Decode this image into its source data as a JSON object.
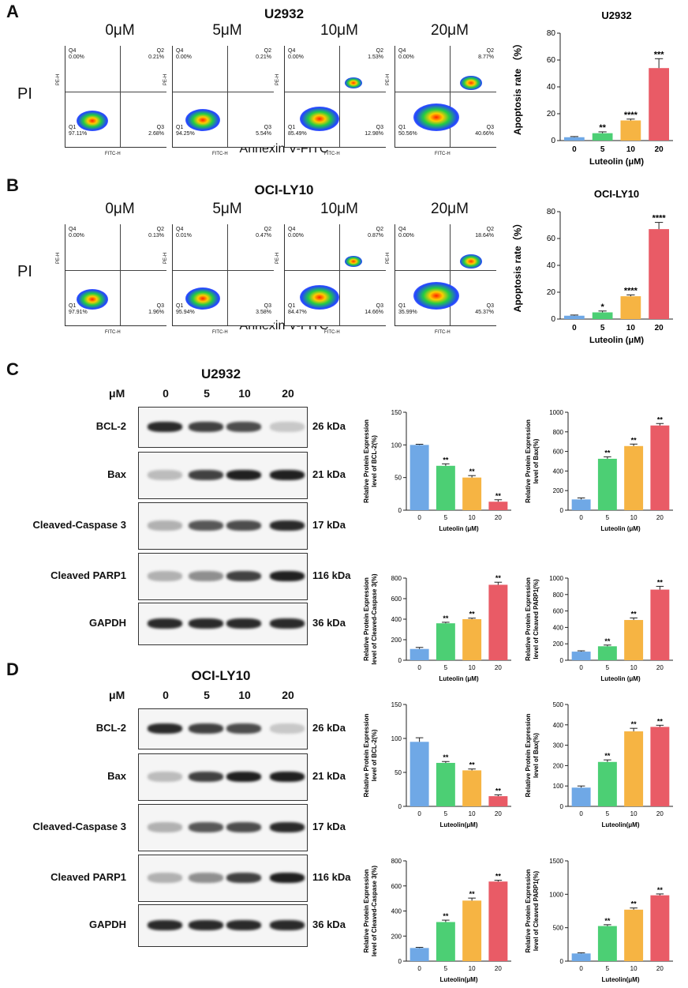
{
  "colors": {
    "c0": "#6fa8e6",
    "c1": "#4ccf74",
    "c2": "#f6b443",
    "c3": "#e95b66"
  },
  "panels": {
    "A": "A",
    "B": "B",
    "C": "C",
    "D": "D"
  },
  "flowA": {
    "title": "U2932",
    "concs": [
      "0μM",
      "5μM",
      "10μM",
      "20μM"
    ],
    "ylabel": "PI",
    "xlabel": "Annexin V-FITC",
    "plots": [
      {
        "q4": "0.00%",
        "q2": "0.21%",
        "q1": "97.11%",
        "q3": "2.68%"
      },
      {
        "q4": "0.00%",
        "q2": "0.21%",
        "q1": "94.25%",
        "q3": "5.54%"
      },
      {
        "q4": "0.00%",
        "q2": "1.53%",
        "q1": "85.49%",
        "q3": "12.98%"
      },
      {
        "q4": "0.00%",
        "q2": "8.77%",
        "q1": "50.56%",
        "q3": "40.66%"
      }
    ]
  },
  "flowB": {
    "title": "OCI-LY10",
    "concs": [
      "0μM",
      "5μM",
      "10μM",
      "20μM"
    ],
    "ylabel": "PI",
    "xlabel": "Annexin V-FITC",
    "plots": [
      {
        "q4": "0.00%",
        "q2": "0.13%",
        "q1": "97.91%",
        "q3": "1.96%"
      },
      {
        "q4": "0.01%",
        "q2": "0.47%",
        "q1": "95.94%",
        "q3": "3.58%"
      },
      {
        "q4": "0.00%",
        "q2": "0.87%",
        "q1": "84.47%",
        "q3": "14.66%"
      },
      {
        "q4": "0.00%",
        "q2": "18.64%",
        "q1": "35.99%",
        "q3": "45.37%"
      }
    ]
  },
  "flowAxis": {
    "q1": "Q1",
    "q2": "Q2",
    "q3": "Q3",
    "q4": "Q4",
    "xaxis": "FITC-H",
    "yaxis": "PE-H"
  },
  "westernC": {
    "title": "U2932",
    "unit": "μM",
    "lanes": [
      "0",
      "5",
      "10",
      "20"
    ],
    "rows": [
      {
        "name": "BCL-2",
        "kda": "26 kDa"
      },
      {
        "name": "Bax",
        "kda": "21 kDa"
      },
      {
        "name": "Cleaved-Caspase 3",
        "kda": "17 kDa"
      },
      {
        "name": "Cleaved PARP1",
        "kda": "116 kDa"
      },
      {
        "name": "GAPDH",
        "kda": "36 kDa"
      }
    ]
  },
  "westernD": {
    "title": "OCI-LY10",
    "unit": "μM",
    "lanes": [
      "0",
      "5",
      "10",
      "20"
    ],
    "rows": [
      {
        "name": "BCL-2",
        "kda": "26 kDa"
      },
      {
        "name": "Bax",
        "kda": "21 kDa"
      },
      {
        "name": "Cleaved-Caspase 3",
        "kda": "17 kDa"
      },
      {
        "name": "Cleaved PARP1",
        "kda": "116 kDa"
      },
      {
        "name": "GAPDH",
        "kda": "36 kDa"
      }
    ]
  },
  "chart_data": [
    {
      "id": "apoA",
      "type": "bar",
      "title": "U2932",
      "categories": [
        "0",
        "5",
        "10",
        "20"
      ],
      "values": [
        2.5,
        5.5,
        15,
        54
      ],
      "errors": [
        0.5,
        1,
        1,
        7
      ],
      "sig": [
        "",
        "**",
        "****",
        "***"
      ],
      "ylabel": "Apoptosis rate （%）",
      "xlabel": "Luteolin (μM)",
      "ylim": [
        0,
        80
      ],
      "ticks": [
        0,
        20,
        40,
        60,
        80
      ]
    },
    {
      "id": "apoB",
      "type": "bar",
      "title": "OCI-LY10",
      "categories": [
        "0",
        "5",
        "10",
        "20"
      ],
      "values": [
        2.5,
        5,
        17,
        67
      ],
      "errors": [
        0.5,
        1,
        1,
        5
      ],
      "sig": [
        "",
        "*",
        "****",
        "****"
      ],
      "ylabel": "Apoptosis rate（%）",
      "xlabel": "Luteolin (μM)",
      "ylim": [
        0,
        80
      ],
      "ticks": [
        0,
        20,
        40,
        60,
        80
      ]
    },
    {
      "id": "c1",
      "type": "bar",
      "title": "",
      "categories": [
        "0",
        "5",
        "10",
        "20"
      ],
      "values": [
        100,
        68,
        50,
        13
      ],
      "errors": [
        1,
        3,
        3,
        3
      ],
      "sig": [
        "",
        "**",
        "**",
        "**"
      ],
      "ylabel": "Relative Protein Expression level of BCL-2(%)",
      "xlabel": "Luteolin (μM)",
      "ylim": [
        0,
        150
      ],
      "ticks": [
        0,
        50,
        100,
        150
      ]
    },
    {
      "id": "c2",
      "type": "bar",
      "title": "",
      "categories": [
        "0",
        "5",
        "10",
        "20"
      ],
      "values": [
        110,
        525,
        655,
        865
      ],
      "errors": [
        15,
        20,
        20,
        20
      ],
      "sig": [
        "",
        "**",
        "**",
        "**"
      ],
      "ylabel": "Relative Protein Expression level of Bax(%)",
      "xlabel": "Luteolin (μM)",
      "ylim": [
        0,
        1000
      ],
      "ticks": [
        0,
        200,
        400,
        600,
        800,
        1000
      ]
    },
    {
      "id": "c3",
      "type": "bar",
      "title": "",
      "categories": [
        "0",
        "5",
        "10",
        "20"
      ],
      "values": [
        110,
        360,
        400,
        735
      ],
      "errors": [
        15,
        10,
        10,
        25
      ],
      "sig": [
        "",
        "**",
        "**",
        "**"
      ],
      "ylabel": "Relative Protein Expression level of Cleaved-Caspase 3(%)",
      "xlabel": "Luteolin (μM)",
      "ylim": [
        0,
        800
      ],
      "ticks": [
        0,
        200,
        400,
        600,
        800
      ]
    },
    {
      "id": "c4",
      "type": "bar",
      "title": "",
      "categories": [
        "0",
        "5",
        "10",
        "20"
      ],
      "values": [
        105,
        170,
        490,
        860
      ],
      "errors": [
        10,
        15,
        25,
        40
      ],
      "sig": [
        "",
        "**",
        "**",
        "**"
      ],
      "ylabel": "Relative Protein Expression level of Cleaved PARP1(%)",
      "xlabel": "Luteolin (μM)",
      "ylim": [
        0,
        1000
      ],
      "ticks": [
        0,
        200,
        400,
        600,
        800,
        1000
      ]
    },
    {
      "id": "d1",
      "type": "bar",
      "title": "",
      "categories": [
        "0",
        "5",
        "10",
        "20"
      ],
      "values": [
        95,
        64,
        53,
        15
      ],
      "errors": [
        6,
        2,
        2,
        2
      ],
      "sig": [
        "",
        "**",
        "**",
        "**"
      ],
      "ylabel": "Relative Protein Expression level of BCL-2(%)",
      "xlabel": "Luteolin(μM)",
      "ylim": [
        0,
        150
      ],
      "ticks": [
        0,
        50,
        100,
        150
      ]
    },
    {
      "id": "d2",
      "type": "bar",
      "title": "",
      "categories": [
        "0",
        "5",
        "10",
        "20"
      ],
      "values": [
        92,
        218,
        368,
        390
      ],
      "errors": [
        8,
        10,
        15,
        8
      ],
      "sig": [
        "",
        "**",
        "**",
        "**"
      ],
      "ylabel": "Relative Protein Expression level of Bax(%)",
      "xlabel": "Luteolin(μM)",
      "ylim": [
        0,
        500
      ],
      "ticks": [
        0,
        100,
        200,
        300,
        400,
        500
      ]
    },
    {
      "id": "d3",
      "type": "bar",
      "title": "",
      "categories": [
        "0",
        "5",
        "10",
        "20"
      ],
      "values": [
        105,
        312,
        483,
        635
      ],
      "errors": [
        5,
        15,
        20,
        10
      ],
      "sig": [
        "",
        "**",
        "**",
        "**"
      ],
      "ylabel": "Relative Protein Expression level of Cleaved-Caspase 3(%)",
      "xlabel": "Luteolin(μM)",
      "ylim": [
        0,
        800
      ],
      "ticks": [
        0,
        200,
        400,
        600,
        800
      ]
    },
    {
      "id": "d4",
      "type": "bar",
      "title": "",
      "categories": [
        "0",
        "5",
        "10",
        "20"
      ],
      "values": [
        115,
        525,
        770,
        985
      ],
      "errors": [
        10,
        20,
        25,
        20
      ],
      "sig": [
        "",
        "**",
        "**",
        "**"
      ],
      "ylabel": "Relative Protein Expression level of Cleaved PARP1(%)",
      "xlabel": "Luteolin(μM)",
      "ylim": [
        0,
        1500
      ],
      "ticks": [
        0,
        500,
        1000,
        1500
      ]
    }
  ]
}
